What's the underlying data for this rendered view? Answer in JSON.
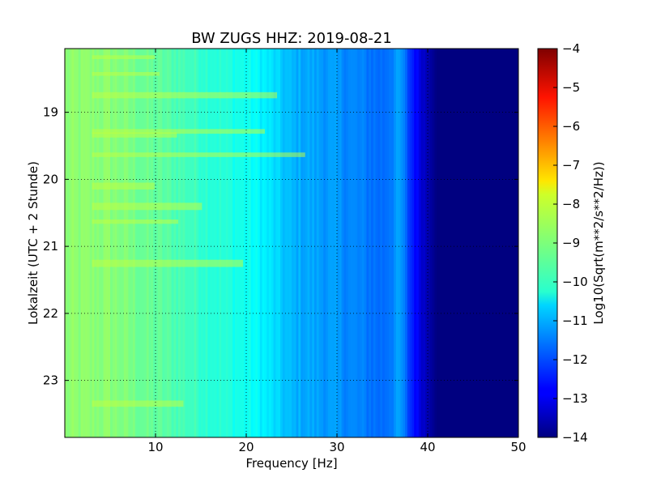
{
  "chart_data": {
    "type": "heatmap",
    "title": "BW ZUGS HHZ: 2019-08-21",
    "xlabel": "Frequency [Hz]",
    "ylabel": "Lokalzeit (UTC + 2 Stunde)",
    "xlim": [
      0,
      50
    ],
    "ylim": [
      18.05,
      23.85
    ],
    "y_inverted": true,
    "x_ticks": [
      10,
      20,
      30,
      40,
      50
    ],
    "y_ticks": [
      19,
      20,
      21,
      22,
      23
    ],
    "grid": true,
    "colormap": "jet",
    "colorbar": {
      "label": "Log10(Sqrt(m**2/s**2/Hz))",
      "range": [
        -14,
        -4
      ],
      "ticks": [
        -4,
        -5,
        -6,
        -7,
        -8,
        -9,
        -10,
        -11,
        -12,
        -13,
        -14
      ]
    },
    "approx_log10_amplitude_vs_frequency": {
      "frequency_hz": [
        0,
        5,
        10,
        15,
        20,
        22,
        23,
        25,
        30,
        35,
        37,
        38,
        39,
        40,
        41,
        50
      ],
      "value": [
        -8.9,
        -8.9,
        -9.3,
        -9.7,
        -10.1,
        -10.4,
        -10.6,
        -11.0,
        -11.3,
        -11.7,
        -11.2,
        -12.2,
        -12.9,
        -13.5,
        -14.0,
        -14.0
      ]
    }
  }
}
